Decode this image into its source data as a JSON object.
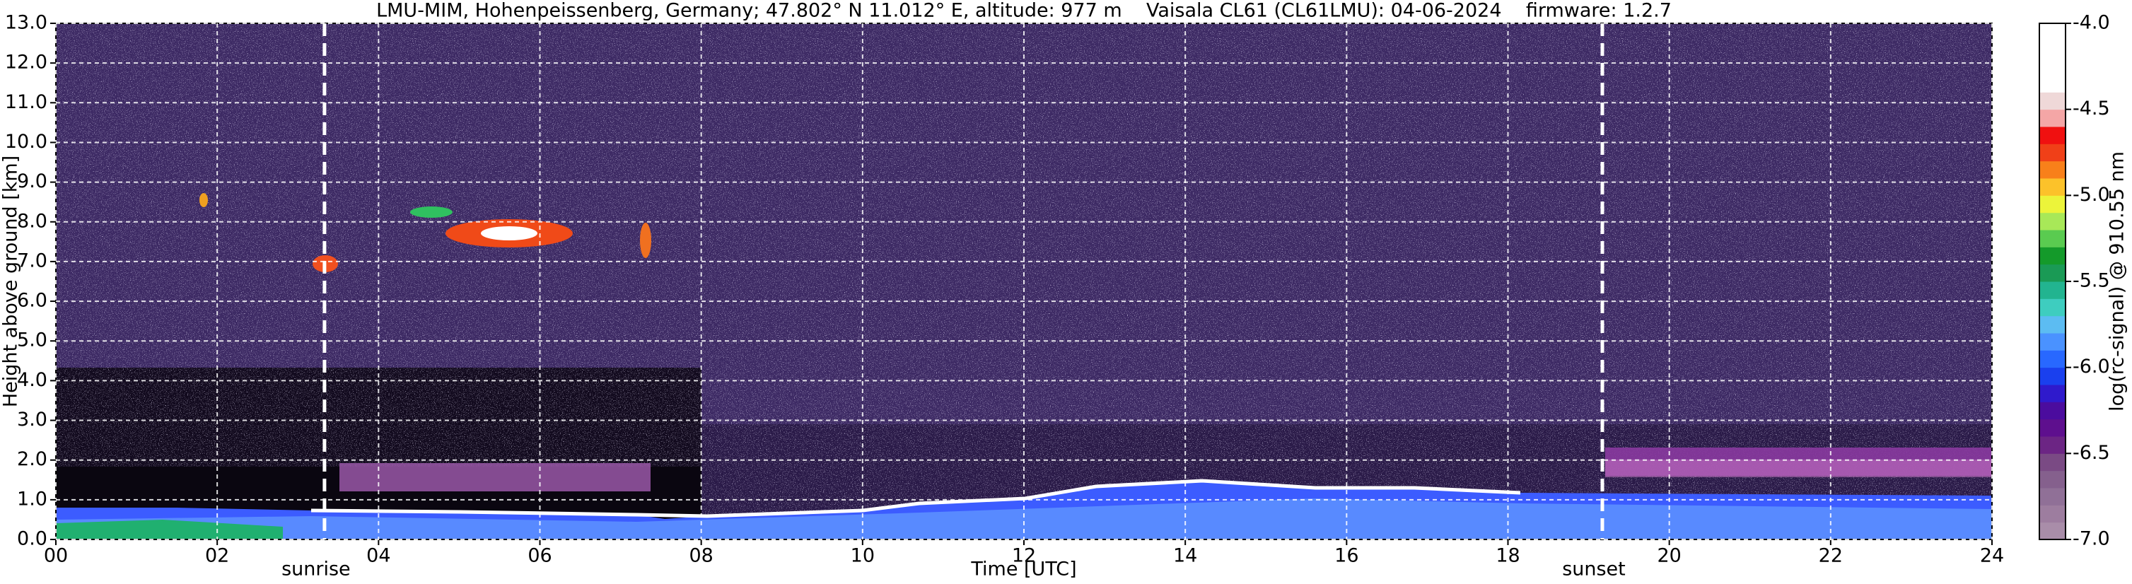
{
  "chart_data": {
    "type": "heatmap",
    "title": "LMU-MIM, Hohenpeissenberg, Germany; 47.802° N 11.012° E, altitude: 977 m    Vaisala CL61 (CL61LMU): 04-06-2024    firmware: 1.2.7",
    "x_label": "Time [UTC]",
    "y_label": "Height above ground [km]",
    "xlim": [
      0,
      24
    ],
    "xticks": [
      {
        "value": 0,
        "label": "00"
      },
      {
        "value": 2,
        "label": "02"
      },
      {
        "value": 4,
        "label": "04"
      },
      {
        "value": 6,
        "label": "06"
      },
      {
        "value": 8,
        "label": "08"
      },
      {
        "value": 10,
        "label": "10"
      },
      {
        "value": 12,
        "label": "12"
      },
      {
        "value": 14,
        "label": "14"
      },
      {
        "value": 16,
        "label": "16"
      },
      {
        "value": 18,
        "label": "18"
      },
      {
        "value": 20,
        "label": "20"
      },
      {
        "value": 22,
        "label": "22"
      },
      {
        "value": 24,
        "label": "24"
      }
    ],
    "ylim": [
      0,
      13
    ],
    "yticks": [
      {
        "value": 0,
        "label": "0.0"
      },
      {
        "value": 1,
        "label": "1.0"
      },
      {
        "value": 2,
        "label": "2.0"
      },
      {
        "value": 3,
        "label": "3.0"
      },
      {
        "value": 4,
        "label": "4.0"
      },
      {
        "value": 5,
        "label": "5.0"
      },
      {
        "value": 6,
        "label": "6.0"
      },
      {
        "value": 7,
        "label": "7.0"
      },
      {
        "value": 8,
        "label": "8.0"
      },
      {
        "value": 9,
        "label": "9.0"
      },
      {
        "value": 10,
        "label": "10.0"
      },
      {
        "value": 11,
        "label": "11.0"
      },
      {
        "value": 12,
        "label": "12.0"
      },
      {
        "value": 13,
        "label": "13.0"
      }
    ],
    "grid": true,
    "annotations": [
      {
        "label": "sunrise",
        "x": 3.33
      },
      {
        "label": "sunset",
        "x": 19.17
      }
    ],
    "colorbar": {
      "label": "log(rc-signal) @ 910.55 nm",
      "lim": [
        -7,
        -4
      ],
      "ticks": [
        {
          "value": -4,
          "label": "-4.0"
        },
        -4.5,
        {
          "value": -5,
          "label": "-5.0"
        },
        -5.5,
        {
          "value": -6,
          "label": "-6.0"
        },
        -6.5,
        {
          "value": -7,
          "label": "-7.0"
        }
      ],
      "colors": [
        "#a98da9",
        "#9d7d9f",
        "#907097",
        "#85608d",
        "#7a4a84",
        "#6c2584",
        "#5e0f8e",
        "#4b0c9e",
        "#2f1acc",
        "#1a40ee",
        "#2868ff",
        "#4a92ff",
        "#5cbcf2",
        "#3ecdbf",
        "#22b490",
        "#1a9a55",
        "#149a2a",
        "#5acb50",
        "#a8e858",
        "#ecf43a",
        "#fcc22a",
        "#f8801a",
        "#f04018",
        "#f01010",
        "#f4a6a6",
        "#efd8d8",
        "#ffffff",
        "#ffffff",
        "#ffffff",
        "#ffffff"
      ]
    }
  }
}
